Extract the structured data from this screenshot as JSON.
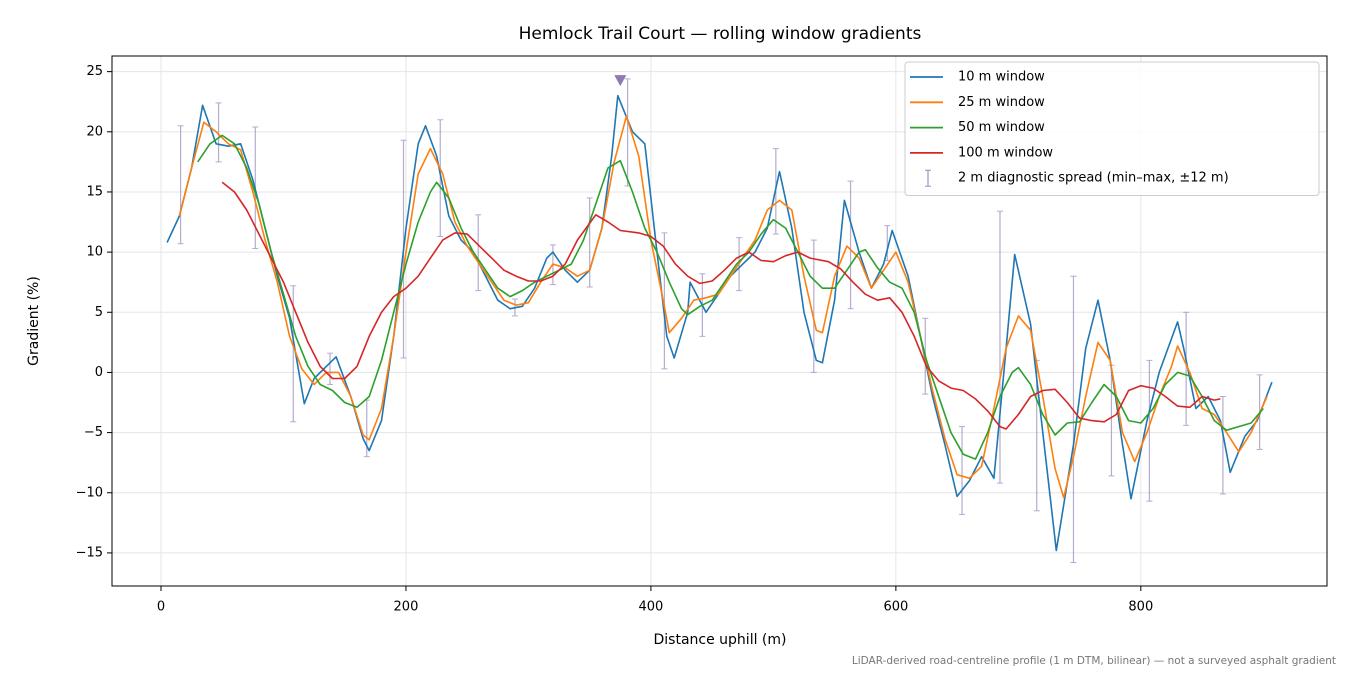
{
  "chart_data": {
    "type": "line",
    "title": "Hemlock Trail Court — rolling window gradients",
    "x_label": "Distance uphill (m)",
    "y_label": "Gradient (%)",
    "note": "LiDAR-derived road-centreline profile (1 m DTM, bilinear) — not a surveyed asphalt gradient",
    "xlim": [
      -40,
      952
    ],
    "ylim": [
      -17.75,
      26.3
    ],
    "xticks": [
      0,
      200,
      400,
      600,
      800
    ],
    "yticks": [
      {
        "value": -15,
        "label": "−15"
      },
      {
        "value": -10,
        "label": "−10"
      },
      {
        "value": -5,
        "label": "−5"
      },
      0,
      5,
      10,
      15,
      20,
      25
    ],
    "grid": true,
    "legend": "upper right",
    "series": [
      {
        "name": "10 m window",
        "color": "#1f77b4",
        "x": [
          5,
          15,
          25,
          34,
          45,
          55,
          65,
          75,
          85,
          95,
          105,
          117,
          125,
          135,
          143,
          155,
          165,
          170,
          180,
          190,
          200,
          210,
          216,
          225,
          235,
          245,
          255,
          265,
          275,
          285,
          295,
          305,
          315,
          320,
          330,
          340,
          350,
          360,
          368,
          373,
          385,
          395,
          405,
          413,
          419,
          430,
          432,
          445,
          455,
          465,
          475,
          485,
          495,
          505,
          515,
          525,
          535,
          540,
          550,
          558,
          570,
          580,
          590,
          597,
          610,
          620,
          630,
          640,
          650,
          660,
          670,
          680,
          690,
          697,
          710,
          720,
          731,
          745,
          755,
          765,
          775,
          785,
          792,
          805,
          815,
          830,
          835,
          845,
          855,
          865,
          873,
          885,
          895,
          907
        ],
        "values": [
          10.8,
          13,
          17,
          22.2,
          19,
          18.8,
          19,
          16,
          12,
          8,
          4.5,
          -2.6,
          -0.5,
          0.5,
          1.3,
          -2,
          -5.5,
          -6.5,
          -4,
          3,
          12,
          19,
          20.5,
          18,
          13,
          11,
          10,
          8,
          6,
          5.3,
          5.5,
          7,
          9.5,
          10,
          8.5,
          7.5,
          8.5,
          12,
          18,
          23,
          20,
          19,
          10,
          3,
          1.2,
          5,
          7.5,
          5,
          6.5,
          8,
          9,
          10,
          12,
          16.7,
          12,
          5,
          1,
          0.8,
          6,
          14.3,
          10,
          7,
          9,
          11.8,
          8,
          3,
          -2,
          -6,
          -10.3,
          -9,
          -7,
          -8.8,
          2,
          9.8,
          4,
          -5,
          -14.8,
          -6,
          2,
          6,
          1,
          -6,
          -10.5,
          -4,
          0,
          4.2,
          2,
          -3,
          -2,
          -4,
          -8.3,
          -5.3,
          -4,
          -0.8
        ]
      },
      {
        "name": "25 m window",
        "color": "#ff7f0e",
        "x": [
          15,
          25,
          35,
          45,
          55,
          65,
          75,
          85,
          95,
          105,
          115,
          125,
          135,
          145,
          155,
          165,
          170,
          180,
          190,
          200,
          210,
          220,
          230,
          240,
          250,
          260,
          270,
          280,
          290,
          300,
          310,
          320,
          330,
          340,
          350,
          360,
          370,
          380,
          390,
          400,
          410,
          415,
          425,
          435,
          445,
          455,
          465,
          475,
          485,
          495,
          505,
          515,
          525,
          535,
          540,
          550,
          560,
          570,
          580,
          590,
          600,
          610,
          620,
          630,
          640,
          650,
          660,
          670,
          680,
          690,
          700,
          710,
          720,
          730,
          737,
          745,
          755,
          765,
          775,
          785,
          795,
          805,
          815,
          825,
          830,
          840,
          850,
          860,
          870,
          880,
          890,
          903
        ],
        "values": [
          13,
          17,
          20.8,
          20,
          19,
          18.5,
          15,
          11,
          7.5,
          3,
          0.3,
          -1,
          0,
          0,
          -2,
          -5.2,
          -5.6,
          -3,
          3,
          10,
          16.5,
          18.6,
          16.5,
          12.5,
          10.5,
          9,
          7.5,
          6,
          5.6,
          5.8,
          7.5,
          9,
          8.7,
          8,
          8.5,
          12,
          17.5,
          21.3,
          18,
          11,
          6,
          3.3,
          4.5,
          6,
          6.2,
          6.5,
          8,
          9.5,
          11,
          13.5,
          14.3,
          13.5,
          8,
          3.5,
          3.3,
          8,
          10.5,
          9.5,
          7,
          8.5,
          10,
          7.5,
          3,
          -1.5,
          -5.5,
          -8.5,
          -8.8,
          -7.8,
          -3,
          2,
          4.7,
          3.5,
          -2,
          -8,
          -10.4,
          -7,
          -2,
          2.5,
          1,
          -5,
          -7.4,
          -5,
          -2,
          0.5,
          2.2,
          0,
          -3,
          -3.5,
          -5,
          -6.6,
          -5,
          -2
        ]
      },
      {
        "name": "50 m window",
        "color": "#2ca02c",
        "x": [
          30,
          40,
          50,
          60,
          70,
          80,
          90,
          100,
          110,
          120,
          130,
          140,
          150,
          160,
          170,
          180,
          190,
          200,
          210,
          220,
          225,
          235,
          245,
          255,
          265,
          275,
          285,
          295,
          305,
          315,
          325,
          335,
          345,
          355,
          365,
          375,
          385,
          395,
          405,
          415,
          425,
          430,
          440,
          450,
          460,
          470,
          480,
          490,
          500,
          510,
          520,
          530,
          540,
          550,
          560,
          570,
          575,
          585,
          595,
          605,
          615,
          625,
          635,
          645,
          655,
          665,
          675,
          685,
          695,
          700,
          710,
          720,
          730,
          740,
          750,
          760,
          770,
          780,
          790,
          800,
          810,
          820,
          830,
          840,
          850,
          860,
          870,
          880,
          890,
          900
        ],
        "values": [
          17.5,
          19,
          19.7,
          19,
          17,
          14,
          10,
          6.5,
          3,
          0.5,
          -1,
          -1.5,
          -2.5,
          -2.9,
          -2,
          1,
          5,
          9,
          12.5,
          15,
          15.8,
          14.5,
          12,
          10,
          8.5,
          7,
          6.3,
          6.8,
          7.5,
          8,
          8.5,
          9,
          11,
          14,
          17,
          17.6,
          15,
          12,
          10,
          7.5,
          5.3,
          4.8,
          5.5,
          6,
          7.5,
          9,
          10,
          11.5,
          12.7,
          12,
          10,
          8,
          7,
          7,
          8.5,
          10,
          10.2,
          8.7,
          7.5,
          7,
          5,
          1,
          -2,
          -5,
          -6.8,
          -7.2,
          -5,
          -2,
          0,
          0.4,
          -1,
          -3.5,
          -5.2,
          -4.2,
          -4.1,
          -2.5,
          -1,
          -2,
          -4,
          -4.2,
          -3,
          -1,
          0,
          -0.3,
          -2,
          -4,
          -4.8,
          -4.5,
          -4.2,
          -3
        ]
      },
      {
        "name": "100 m window",
        "color": "#d62728",
        "x": [
          50,
          60,
          70,
          80,
          90,
          100,
          110,
          120,
          130,
          140,
          150,
          160,
          170,
          180,
          190,
          200,
          210,
          220,
          230,
          240,
          250,
          260,
          270,
          280,
          290,
          300,
          310,
          320,
          330,
          340,
          355,
          365,
          375,
          390,
          400,
          410,
          420,
          430,
          440,
          450,
          460,
          470,
          480,
          490,
          500,
          510,
          520,
          530,
          545,
          555,
          565,
          575,
          585,
          595,
          605,
          615,
          625,
          635,
          645,
          655,
          665,
          675,
          685,
          690,
          700,
          710,
          720,
          730,
          740,
          750,
          760,
          770,
          780,
          790,
          800,
          810,
          820,
          830,
          840,
          850,
          860,
          865
        ],
        "values": [
          15.8,
          15,
          13.5,
          11.5,
          9.5,
          7.5,
          5,
          2.5,
          0.5,
          -0.5,
          -0.5,
          0.5,
          3,
          5,
          6.3,
          7,
          8,
          9.5,
          11,
          11.6,
          11.5,
          10.5,
          9.5,
          8.5,
          8,
          7.6,
          7.6,
          8,
          9,
          11,
          13.1,
          12.5,
          11.8,
          11.6,
          11.3,
          10.5,
          9,
          8,
          7.4,
          7.6,
          8.5,
          9.5,
          10,
          9.3,
          9.2,
          9.7,
          10,
          9.5,
          9.2,
          8.6,
          7.5,
          6.5,
          6,
          6.2,
          5,
          3,
          0.5,
          -0.7,
          -1.3,
          -1.5,
          -2.2,
          -3.2,
          -4.5,
          -4.7,
          -3.5,
          -2,
          -1.5,
          -1.4,
          -2.5,
          -3.8,
          -4,
          -4.1,
          -3.5,
          -1.5,
          -1.1,
          -1.3,
          -2,
          -2.8,
          -2.9,
          -2,
          -2.3,
          -2.2
        ]
      }
    ],
    "errorbars": {
      "name": "2 m diagnostic spread (min–max, ±12 m)",
      "color": "#9b8fc0",
      "x": [
        16,
        47,
        77,
        108,
        138,
        168,
        198,
        228,
        259,
        289,
        320,
        350,
        381,
        411,
        442,
        472,
        502,
        533,
        563,
        593,
        624,
        654,
        685,
        715,
        745,
        776,
        807,
        837,
        867,
        897
      ],
      "low": [
        10.7,
        17.5,
        10.3,
        -4.1,
        -1,
        -7,
        1.2,
        11.3,
        6.8,
        4.7,
        7.3,
        7.1,
        15.5,
        0.3,
        3,
        6.8,
        11.5,
        0,
        5.3,
        9.3,
        -1.8,
        -11.8,
        -9.2,
        -11.5,
        -15.8,
        -8.6,
        -10.7,
        -4.4,
        -10.1,
        -6.4
      ],
      "high": [
        20.5,
        22.4,
        20.4,
        7.2,
        1.6,
        -2.3,
        19.3,
        21,
        13.1,
        6.1,
        10.6,
        14.5,
        24.4,
        11.6,
        8.2,
        11.2,
        18.6,
        11,
        15.9,
        12.2,
        4.5,
        -4.5,
        13.4,
        1,
        8,
        0.6,
        1,
        5,
        -2,
        -0.2
      ]
    },
    "peak_marker": {
      "x": 375,
      "y": 24.3,
      "color": "#8c7ab0"
    }
  }
}
